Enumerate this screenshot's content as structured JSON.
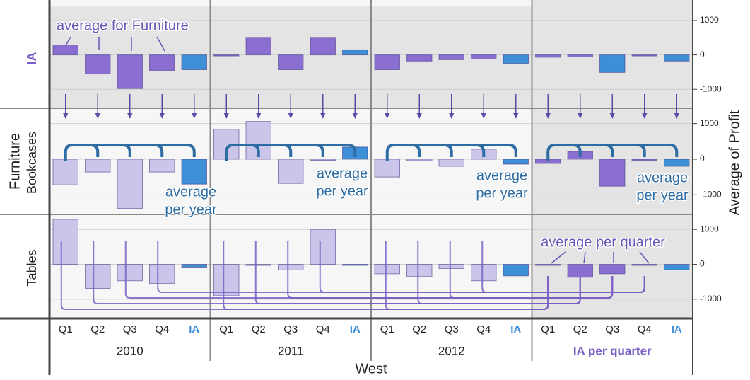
{
  "chart_data": {
    "type": "bar",
    "row_group": "Furniture",
    "x_title": "West",
    "y_title": "Average of Profit",
    "groups": [
      {
        "name": "2010",
        "categories": [
          "Q1",
          "Q2",
          "Q3",
          "Q4",
          "IA"
        ]
      },
      {
        "name": "2011",
        "categories": [
          "Q1",
          "Q2",
          "Q3",
          "Q4",
          "IA"
        ]
      },
      {
        "name": "2012",
        "categories": [
          "Q1",
          "Q2",
          "Q3",
          "Q4",
          "IA"
        ]
      },
      {
        "name": "IA per quarter",
        "categories": [
          "Q1",
          "Q2",
          "Q3",
          "Q4",
          "IA"
        ]
      }
    ],
    "ylim": [
      -1550,
      1430
    ],
    "yticks": [
      -1000,
      0,
      1000
    ],
    "grid": true,
    "series": [
      {
        "name": "IA",
        "values": [
          290,
          -550,
          -980,
          -450,
          -430,
          -20,
          510,
          -430,
          510,
          140,
          -430,
          -180,
          -140,
          -120,
          -250,
          -70,
          -60,
          -510,
          -10,
          -180
        ],
        "colors": [
          "#8a6fd0",
          "#8a6fd0",
          "#8a6fd0",
          "#8a6fd0",
          "#3d8fd6",
          "#8a6fd0",
          "#8a6fd0",
          "#8a6fd0",
          "#8a6fd0",
          "#3d8fd6",
          "#8a6fd0",
          "#8a6fd0",
          "#8a6fd0",
          "#8a6fd0",
          "#3d8fd6",
          "#8a6fd0",
          "#8a6fd0",
          "#3d8fd6",
          "#8a6fd0",
          "#3d8fd6"
        ]
      },
      {
        "name": "Bookcases",
        "values": [
          -720,
          -360,
          -1380,
          -360,
          -700,
          840,
          1060,
          -680,
          -30,
          340,
          -500,
          -40,
          -200,
          280,
          -140,
          -120,
          220,
          -760,
          -20,
          -200
        ],
        "colors": [
          "#cbc5ea",
          "#cbc5ea",
          "#cbc5ea",
          "#cbc5ea",
          "#3d8fd6",
          "#cbc5ea",
          "#cbc5ea",
          "#cbc5ea",
          "#cbc5ea",
          "#3d8fd6",
          "#cbc5ea",
          "#cbc5ea",
          "#cbc5ea",
          "#cbc5ea",
          "#3d8fd6",
          "#8a6fd0",
          "#8a6fd0",
          "#8a6fd0",
          "#8a6fd0",
          "#3d8fd6"
        ]
      },
      {
        "name": "Tables",
        "values": [
          1290,
          -690,
          -470,
          -550,
          -100,
          -900,
          -10,
          -160,
          1000,
          -10,
          -270,
          -350,
          -120,
          -470,
          -330,
          -10,
          -370,
          -270,
          -20,
          -160
        ],
        "colors": [
          "#cbc5ea",
          "#cbc5ea",
          "#cbc5ea",
          "#cbc5ea",
          "#3d8fd6",
          "#cbc5ea",
          "#cbc5ea",
          "#cbc5ea",
          "#cbc5ea",
          "#3d8fd6",
          "#cbc5ea",
          "#cbc5ea",
          "#cbc5ea",
          "#cbc5ea",
          "#3d8fd6",
          "#8a6fd0",
          "#8a6fd0",
          "#8a6fd0",
          "#8a6fd0",
          "#3d8fd6"
        ]
      }
    ],
    "annotations": [
      [
        "average for Furniture"
      ],
      [
        "average",
        "per year"
      ],
      [
        "average",
        "per year"
      ],
      [
        "average",
        "per year"
      ],
      [
        "average",
        "per year"
      ],
      [
        "average per quarter"
      ]
    ]
  }
}
